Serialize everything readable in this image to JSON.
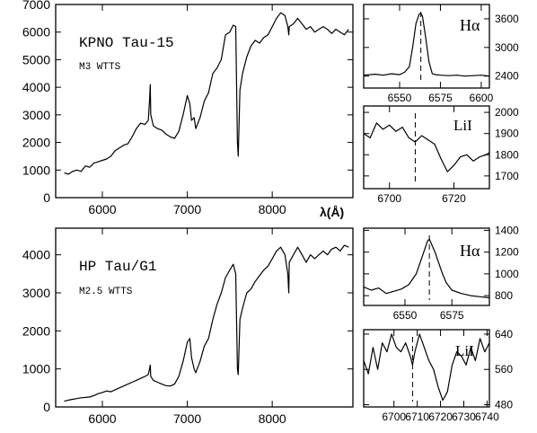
{
  "chart_data": [
    {
      "id": "kpno_spectrum",
      "type": "line",
      "label": "KPNO Tau-15",
      "sublabel": "M3 WTTS",
      "xlabel": "λ(Å)",
      "xlim": [
        5450,
        8950
      ],
      "ylim": [
        0,
        7000
      ],
      "xticks": [
        6000,
        7000,
        8000
      ],
      "yticks": [
        0,
        1000,
        2000,
        3000,
        4000,
        5000,
        6000,
        7000
      ],
      "series": [
        {
          "x": [
            5550,
            5600,
            5650,
            5700,
            5750,
            5800,
            5850,
            5900,
            5950,
            6000,
            6050,
            6100,
            6150,
            6200,
            6250,
            6300,
            6350,
            6400,
            6450,
            6500,
            6540,
            6555,
            6563,
            6570,
            6600,
            6650,
            6700,
            6750,
            6800,
            6850,
            6900,
            6950,
            7000,
            7030,
            7050,
            7080,
            7100,
            7150,
            7200,
            7250,
            7300,
            7350,
            7400,
            7450,
            7500,
            7540,
            7570,
            7590,
            7600,
            7620,
            7650,
            7700,
            7750,
            7800,
            7850,
            7900,
            7950,
            8000,
            8050,
            8100,
            8150,
            8183,
            8195,
            8200,
            8250,
            8300,
            8350,
            8400,
            8450,
            8500,
            8550,
            8600,
            8650,
            8700,
            8750,
            8800,
            8850,
            8900
          ],
          "y": [
            900,
            850,
            950,
            1000,
            950,
            1150,
            1100,
            1250,
            1300,
            1350,
            1400,
            1500,
            1700,
            1800,
            1900,
            1950,
            2200,
            2500,
            2700,
            2650,
            2800,
            3500,
            4100,
            3000,
            2600,
            2500,
            2450,
            2300,
            2200,
            2150,
            2400,
            3000,
            3700,
            3400,
            2800,
            2900,
            2500,
            2900,
            3500,
            3800,
            4500,
            4700,
            5000,
            5900,
            6000,
            6250,
            6200,
            2000,
            1500,
            3900,
            4500,
            5100,
            5500,
            5700,
            5600,
            5800,
            5900,
            6200,
            6500,
            6700,
            6600,
            6200,
            5900,
            6200,
            6300,
            6500,
            6300,
            6100,
            6200,
            6000,
            6100,
            6200,
            6100,
            5950,
            6100,
            6000,
            5900,
            6100
          ]
        }
      ]
    },
    {
      "id": "kpno_halpha",
      "type": "line",
      "label": "Hα",
      "xlim": [
        6528,
        6605
      ],
      "ylim": [
        2150,
        3900
      ],
      "xticks": [
        6550,
        6575,
        6600
      ],
      "yticks": [
        2400,
        3000,
        3600
      ],
      "marker_x": 6563,
      "series": [
        {
          "x": [
            6528,
            6535,
            6540,
            6545,
            6550,
            6553,
            6556,
            6558,
            6560,
            6562,
            6563,
            6564,
            6566,
            6568,
            6570,
            6572,
            6575,
            6580,
            6585,
            6590,
            6595,
            6600,
            6605
          ],
          "y": [
            2420,
            2440,
            2420,
            2450,
            2430,
            2480,
            2600,
            3000,
            3500,
            3700,
            3720,
            3650,
            3200,
            2700,
            2450,
            2430,
            2420,
            2410,
            2420,
            2400,
            2410,
            2420,
            2400
          ]
        }
      ]
    },
    {
      "id": "kpno_li",
      "type": "line",
      "label": "LiI",
      "xlim": [
        6692,
        6731
      ],
      "ylim": [
        1640,
        2030
      ],
      "xticks": [
        6700,
        6720
      ],
      "yticks": [
        1700,
        1800,
        1900,
        2000
      ],
      "marker_x": 6708,
      "series": [
        {
          "x": [
            6692,
            6694,
            6696,
            6698,
            6700,
            6702,
            6704,
            6706,
            6708,
            6710,
            6712,
            6714,
            6716,
            6718,
            6720,
            6722,
            6724,
            6726,
            6728,
            6730,
            6731
          ],
          "y": [
            1900,
            1880,
            1950,
            1920,
            1940,
            1910,
            1930,
            1880,
            1860,
            1890,
            1870,
            1850,
            1780,
            1720,
            1750,
            1790,
            1800,
            1770,
            1790,
            1800,
            1810
          ]
        }
      ]
    },
    {
      "id": "hp_spectrum",
      "type": "line",
      "label": "HP Tau/G1",
      "sublabel": "M2.5 WTTS",
      "xlabel": "",
      "xlim": [
        5450,
        8950
      ],
      "ylim": [
        0,
        4700
      ],
      "xticks": [
        6000,
        7000,
        8000
      ],
      "yticks": [
        0,
        1000,
        2000,
        3000,
        4000
      ],
      "series": [
        {
          "x": [
            5550,
            5600,
            5650,
            5700,
            5750,
            5800,
            5850,
            5900,
            5950,
            6000,
            6050,
            6100,
            6150,
            6200,
            6250,
            6300,
            6350,
            6400,
            6450,
            6500,
            6540,
            6555,
            6563,
            6570,
            6600,
            6650,
            6700,
            6750,
            6800,
            6850,
            6900,
            6950,
            7000,
            7030,
            7050,
            7080,
            7100,
            7150,
            7200,
            7250,
            7300,
            7350,
            7400,
            7450,
            7500,
            7540,
            7570,
            7590,
            7600,
            7620,
            7650,
            7700,
            7750,
            7800,
            7850,
            7900,
            7950,
            8000,
            8050,
            8100,
            8150,
            8183,
            8195,
            8200,
            8250,
            8300,
            8350,
            8400,
            8450,
            8500,
            8550,
            8600,
            8650,
            8700,
            8750,
            8800,
            8850,
            8900
          ],
          "y": [
            150,
            180,
            200,
            220,
            240,
            250,
            260,
            300,
            350,
            380,
            420,
            400,
            450,
            500,
            550,
            600,
            650,
            700,
            750,
            800,
            850,
            1000,
            1100,
            800,
            700,
            650,
            600,
            560,
            550,
            600,
            800,
            1200,
            1700,
            1800,
            1300,
            1000,
            900,
            1200,
            1600,
            1800,
            2300,
            2700,
            3000,
            3400,
            3600,
            3750,
            3500,
            1000,
            850,
            2300,
            2600,
            3000,
            3100,
            3300,
            3450,
            3600,
            3700,
            3900,
            4100,
            4200,
            4000,
            3500,
            3000,
            3800,
            4000,
            4200,
            4000,
            3800,
            4000,
            3900,
            4000,
            4100,
            4000,
            4150,
            4200,
            4100,
            4250,
            4200
          ]
        }
      ]
    },
    {
      "id": "hp_halpha",
      "type": "line",
      "label": "Hα",
      "xlim": [
        6528,
        6595
      ],
      "ylim": [
        710,
        1420
      ],
      "xticks": [
        6550,
        6575
      ],
      "yticks": [
        800,
        1000,
        1200,
        1400
      ],
      "marker_x": 6563,
      "series": [
        {
          "x": [
            6528,
            6532,
            6536,
            6540,
            6544,
            6548,
            6552,
            6556,
            6558,
            6560,
            6562,
            6563,
            6564,
            6566,
            6568,
            6570,
            6572,
            6575,
            6580,
            6585,
            6590,
            6595
          ],
          "y": [
            880,
            850,
            870,
            820,
            840,
            860,
            900,
            1000,
            1100,
            1200,
            1300,
            1320,
            1280,
            1200,
            1100,
            1000,
            920,
            850,
            820,
            800,
            790,
            780
          ]
        }
      ]
    },
    {
      "id": "hp_li",
      "type": "line",
      "label": "LiI",
      "xlim": [
        6687,
        6741
      ],
      "ylim": [
        475,
        650
      ],
      "xticks": [
        6700,
        6710,
        6720,
        6730,
        6740
      ],
      "yticks": [
        480,
        560,
        640
      ],
      "marker_x": 6708,
      "series": [
        {
          "x": [
            6687,
            6689,
            6691,
            6693,
            6695,
            6697,
            6699,
            6701,
            6703,
            6705,
            6707,
            6708,
            6709,
            6711,
            6713,
            6715,
            6717,
            6719,
            6721,
            6723,
            6725,
            6727,
            6729,
            6731,
            6733,
            6735,
            6737,
            6739,
            6741
          ],
          "y": [
            580,
            550,
            610,
            560,
            620,
            600,
            640,
            610,
            600,
            620,
            590,
            570,
            600,
            640,
            610,
            580,
            560,
            520,
            490,
            510,
            570,
            600,
            590,
            570,
            610,
            580,
            630,
            600,
            620
          ]
        }
      ]
    }
  ]
}
